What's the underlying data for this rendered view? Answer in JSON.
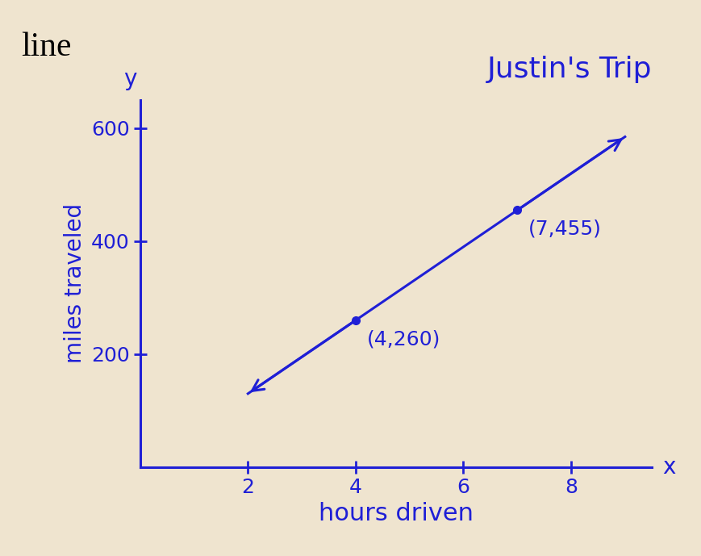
{
  "chart_data": {
    "type": "line",
    "title": "Justin's Trip",
    "header_text": "line",
    "x_label": "hours driven",
    "y_label": "miles traveled",
    "x_symbol": "x",
    "y_symbol": "y",
    "series": [
      {
        "name": "Justin's Trip",
        "color": "#1f1fd6",
        "line_style": "solid",
        "x": [
          2,
          4,
          7,
          9
        ],
        "values": [
          130,
          260,
          455,
          585
        ]
      }
    ],
    "annotations": [
      {
        "x": 4,
        "y": 260,
        "text": "(4,260)"
      },
      {
        "x": 7,
        "y": 455,
        "text": "(7,455)"
      }
    ],
    "xlim": [
      0,
      9.5
    ],
    "xticks": [
      2,
      4,
      6,
      8
    ],
    "ylim": [
      0,
      650
    ],
    "yticks": [
      200,
      400,
      600
    ],
    "grid": false
  }
}
